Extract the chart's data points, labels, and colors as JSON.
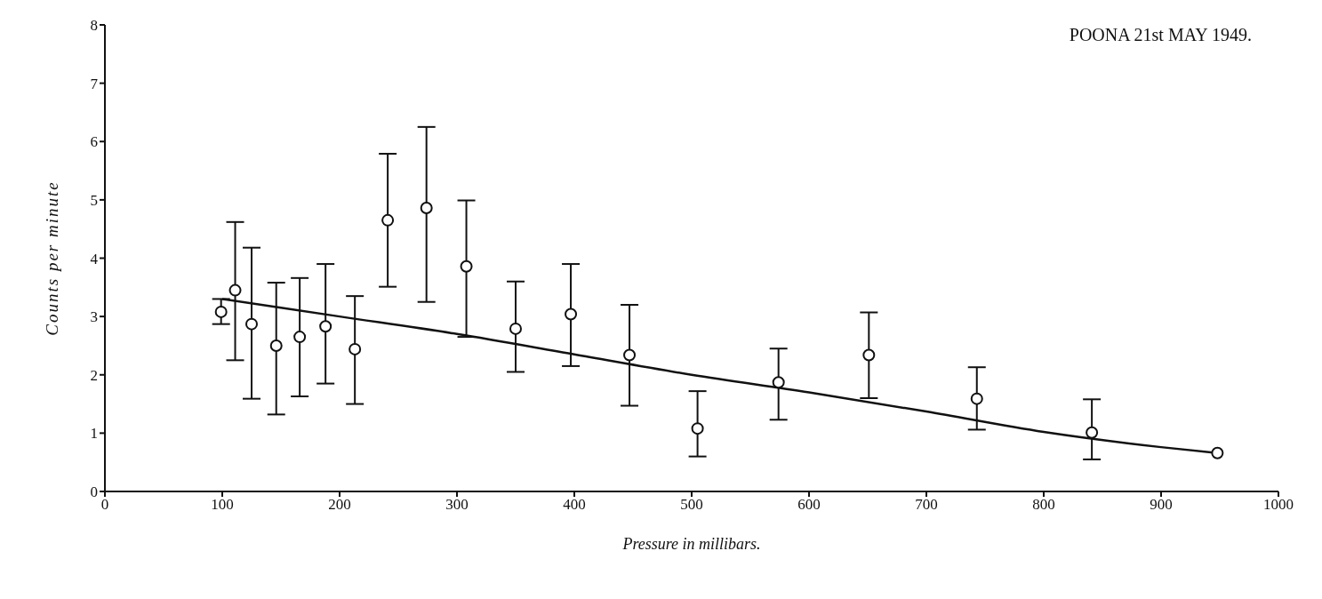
{
  "chart_data": {
    "type": "scatter",
    "xlabel": "Pressure in millibars.",
    "ylabel": "Counts per minute",
    "annotations": [
      "POONA 21st MAY 1949."
    ],
    "xlim": [
      0,
      1000
    ],
    "xticks": [
      0,
      100,
      200,
      300,
      400,
      500,
      600,
      700,
      800,
      900,
      1000
    ],
    "ylim": [
      0,
      8
    ],
    "yticks": [
      0,
      1,
      2,
      3,
      4,
      5,
      6,
      7,
      8
    ],
    "series": [
      {
        "color": "#111111",
        "marker": "circle",
        "x": [
          99,
          111,
          125,
          146,
          166,
          188,
          213,
          241,
          274,
          308,
          350,
          397,
          447,
          505,
          574,
          651,
          743,
          841
        ],
        "values": [
          3.08,
          3.45,
          2.87,
          2.5,
          2.65,
          2.83,
          2.44,
          4.65,
          4.86,
          3.86,
          2.79,
          3.04,
          2.34,
          1.08,
          1.87,
          2.34,
          1.59,
          1.01
        ],
        "errors": [
          [
            2.87,
            3.3
          ],
          [
            2.25,
            4.62
          ],
          [
            1.59,
            4.18
          ],
          [
            1.32,
            3.58
          ],
          [
            1.63,
            3.66
          ],
          [
            1.85,
            3.9
          ],
          [
            1.5,
            3.35
          ],
          [
            3.51,
            5.79
          ],
          [
            3.25,
            6.25
          ],
          [
            2.65,
            4.99
          ],
          [
            2.05,
            3.6
          ],
          [
            2.15,
            3.9
          ],
          [
            1.47,
            3.2
          ],
          [
            0.6,
            1.72
          ],
          [
            1.23,
            2.45
          ],
          [
            1.6,
            3.07
          ],
          [
            1.06,
            2.13
          ],
          [
            0.55,
            1.58
          ]
        ]
      },
      {
        "type": "line",
        "color": "#111111",
        "marker": "none",
        "line_style": "solid",
        "x": [
          100,
          200,
          300,
          400,
          500,
          600,
          700,
          800,
          900,
          948
        ],
        "values": [
          3.3,
          3.0,
          2.7,
          2.35,
          2.0,
          1.7,
          1.37,
          1.02,
          0.76,
          0.66
        ]
      },
      {
        "color": "#111111",
        "marker": "circle",
        "x": [
          948
        ],
        "values": [
          0.66
        ]
      }
    ]
  }
}
